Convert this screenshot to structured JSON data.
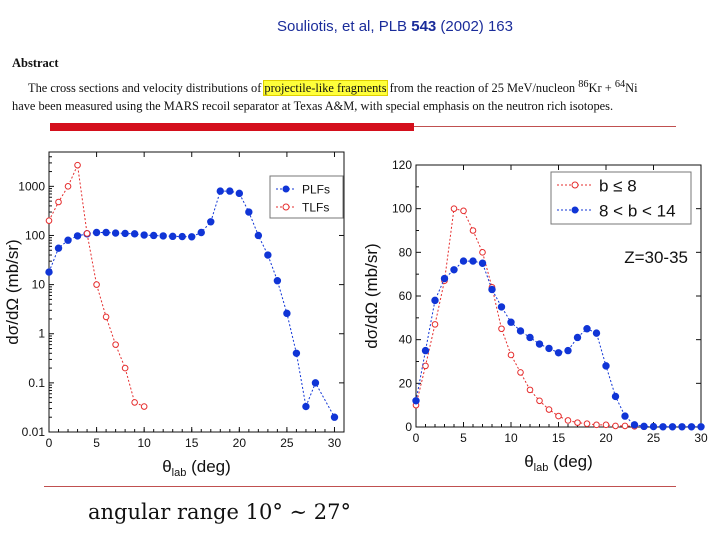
{
  "citation": {
    "prefix": "Souliotis, et al, PLB ",
    "volume": "543",
    "suffix": " (2002) 163"
  },
  "abstract": {
    "heading": "Abstract",
    "line1_before": "The cross sections and velocity distributions of ",
    "line1_highlight": "projectile-like fragments",
    "line1_mid": " from the reaction of 25 MeV/nucleon ",
    "kr_mass": "86",
    "kr_symbol": "Kr",
    "plus": " + ",
    "ni_mass": "64",
    "ni_symbol": "Ni",
    "line2": "have been measured using the MARS recoil separator at Texas A&M, with special emphasis on the neutron rich isotopes."
  },
  "caption": {
    "text": "angular range 10° ∼ 27°"
  },
  "chart_data": [
    {
      "type": "line",
      "ylabel": "dσ/dΩ (mb/sr)",
      "xlabel_main": "θ",
      "xlabel_sub": "lab",
      "xlabel_unit": " (deg)",
      "xlim": [
        0,
        31
      ],
      "ylim": [
        0.01,
        5000
      ],
      "yscale": "log",
      "xticks": [
        0,
        5,
        10,
        15,
        20,
        25,
        30
      ],
      "yticks": [
        {
          "v": 0.01,
          "label": "0.01"
        },
        {
          "v": 0.1,
          "label": "0.1"
        },
        {
          "v": 1,
          "label": "1"
        },
        {
          "v": 10,
          "label": "10"
        },
        {
          "v": 100,
          "label": "100"
        },
        {
          "v": 1000,
          "label": "1000"
        }
      ],
      "legend_position": "top-right",
      "series": [
        {
          "name": "PLFs",
          "color": "#1035d6",
          "marker": "filled-circle",
          "x": [
            0,
            1,
            2,
            3,
            4,
            5,
            6,
            7,
            8,
            9,
            10,
            11,
            12,
            13,
            14,
            15,
            16,
            17,
            18,
            19,
            20,
            21,
            22,
            23,
            24,
            25,
            26,
            27,
            28,
            30
          ],
          "y": [
            18,
            55,
            80,
            98,
            108,
            115,
            115,
            112,
            110,
            108,
            102,
            100,
            98,
            96,
            95,
            94,
            115,
            190,
            800,
            800,
            720,
            300,
            100,
            40,
            12,
            2.6,
            0.4,
            0.033,
            0.1,
            0.02
          ]
        },
        {
          "name": "TLFs",
          "color": "#e52d2d",
          "marker": "open-circle",
          "x": [
            0,
            1,
            2,
            3,
            4,
            5,
            6,
            7,
            8,
            9,
            10
          ],
          "y": [
            200,
            480,
            1000,
            2700,
            110,
            10,
            2.2,
            0.6,
            0.2,
            0.04,
            0.033
          ]
        }
      ]
    },
    {
      "type": "line",
      "ylabel": "dσ/dΩ (mb/sr)",
      "xlabel_main": "θ",
      "xlabel_sub": "lab",
      "xlabel_unit": " (deg)",
      "xlim": [
        0,
        30
      ],
      "ylim": [
        0,
        120
      ],
      "xticks": [
        0,
        5,
        10,
        15,
        20,
        25,
        30
      ],
      "yticks": [
        0,
        20,
        40,
        60,
        80,
        100,
        120
      ],
      "annotation": "Z=30-35",
      "legend_position": "top-right",
      "series": [
        {
          "name": "b ≤ 8",
          "color": "#e52d2d",
          "marker": "open-circle",
          "x": [
            0,
            1,
            2,
            3,
            4,
            5,
            6,
            7,
            8,
            9,
            10,
            11,
            12,
            13,
            14,
            15,
            16,
            17,
            18,
            19,
            20,
            21,
            22,
            23,
            24
          ],
          "y": [
            10,
            28,
            47,
            67,
            100,
            99,
            90,
            80,
            64,
            45,
            33,
            25,
            17,
            12,
            8,
            5,
            3,
            2,
            1.5,
            1,
            1,
            0.5,
            0.5,
            0.3,
            0.1
          ]
        },
        {
          "name": "8 <  b < 14",
          "color": "#1035d6",
          "marker": "filled-circle",
          "x": [
            0,
            1,
            2,
            3,
            4,
            5,
            6,
            7,
            8,
            9,
            10,
            11,
            12,
            13,
            14,
            15,
            16,
            17,
            18,
            19,
            20,
            21,
            22,
            23,
            24,
            25,
            26,
            27,
            28,
            29,
            30
          ],
          "y": [
            12,
            35,
            58,
            68,
            72,
            76,
            76,
            75,
            63,
            55,
            48,
            44,
            41,
            38,
            36,
            34,
            35,
            41,
            45,
            43,
            28,
            14,
            5,
            1,
            0.3,
            0.2,
            0.1,
            0.1,
            0.1,
            0.1,
            0.1
          ]
        }
      ]
    }
  ]
}
